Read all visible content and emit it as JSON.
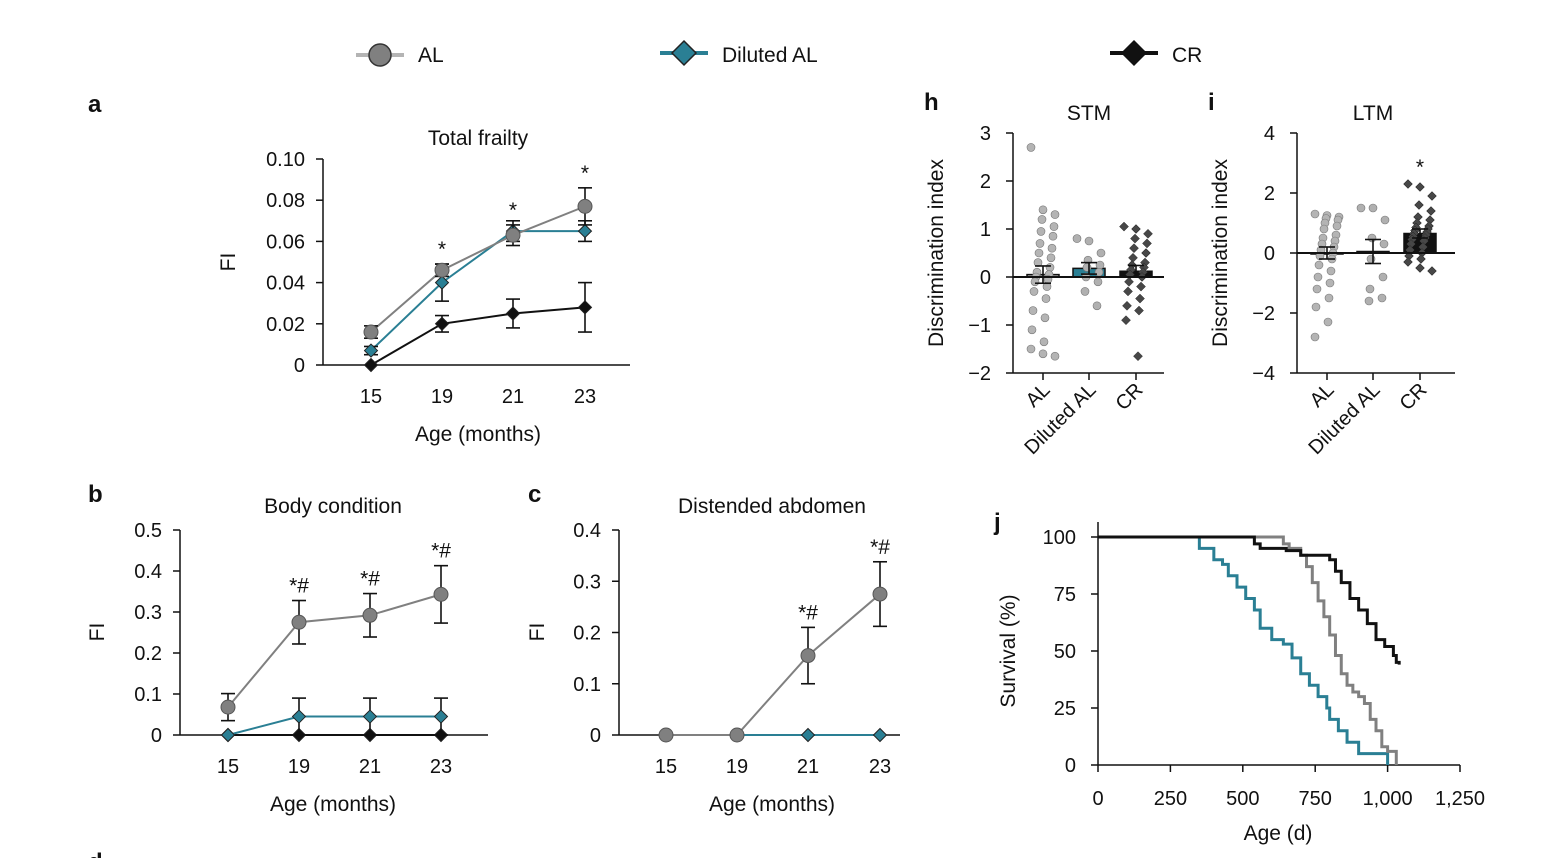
{
  "legend": [
    {
      "name": "AL",
      "color": "#808080",
      "marker": "circle"
    },
    {
      "name": "Diluted AL",
      "color": "#2a7f94",
      "marker": "diamond"
    },
    {
      "name": "CR",
      "color": "#111111",
      "marker": "diamond"
    }
  ],
  "colors": {
    "AL": "#808080",
    "DilutedAL": "#2a7f94",
    "CR": "#111111",
    "ALpoint": "#b4b4b4",
    "CRpoint": "#474747"
  },
  "panel_letters": {
    "a": "a",
    "b": "b",
    "c": "c",
    "h": "h",
    "i": "i",
    "j": "j",
    "d": "d"
  },
  "chart_data": [
    {
      "id": "a",
      "type": "line",
      "title": "Total frailty",
      "xlabel": "Age (months)",
      "ylabel": "FI",
      "categories": [
        "15",
        "19",
        "21",
        "23"
      ],
      "ylim": [
        0,
        0.1
      ],
      "yticks": [
        "0",
        "0.02",
        "0.04",
        "0.06",
        "0.08",
        "0.10"
      ],
      "series": [
        {
          "name": "AL",
          "values": [
            0.016,
            0.046,
            0.063,
            0.077
          ],
          "errors": [
            0.003,
            0.003,
            0.005,
            0.009
          ]
        },
        {
          "name": "Diluted AL",
          "values": [
            0.007,
            0.04,
            0.065,
            0.065
          ],
          "errors": [
            0.002,
            0.009,
            0.005,
            0.005
          ]
        },
        {
          "name": "CR",
          "values": [
            0.0,
            0.02,
            0.025,
            0.028
          ],
          "errors": [
            0.0,
            0.004,
            0.007,
            0.012
          ]
        }
      ],
      "annotations": [
        "",
        "*",
        "*",
        "*"
      ]
    },
    {
      "id": "b",
      "type": "line",
      "title": "Body condition",
      "xlabel": "Age (months)",
      "ylabel": "FI",
      "categories": [
        "15",
        "19",
        "21",
        "23"
      ],
      "ylim": [
        0,
        0.5
      ],
      "yticks": [
        "0",
        "0.1",
        "0.2",
        "0.3",
        "0.4",
        "0.5"
      ],
      "series": [
        {
          "name": "AL",
          "values": [
            0.068,
            0.275,
            0.292,
            0.343
          ],
          "errors": [
            0.033,
            0.053,
            0.053,
            0.07
          ]
        },
        {
          "name": "Diluted AL",
          "values": [
            0.0,
            0.045,
            0.045,
            0.045
          ],
          "errors": [
            0.0,
            0.045,
            0.045,
            0.045
          ]
        },
        {
          "name": "CR",
          "values": [
            0,
            0,
            0,
            0
          ],
          "errors": [
            0,
            0,
            0,
            0
          ]
        }
      ],
      "annotations": [
        "",
        "*#",
        "*#",
        "*#"
      ]
    },
    {
      "id": "c",
      "type": "line",
      "title": "Distended abdomen",
      "xlabel": "Age (months)",
      "ylabel": "FI",
      "categories": [
        "15",
        "19",
        "21",
        "23"
      ],
      "ylim": [
        0,
        0.4
      ],
      "yticks": [
        "0",
        "0.1",
        "0.2",
        "0.3",
        "0.4"
      ],
      "series": [
        {
          "name": "AL",
          "values": [
            0,
            0,
            0.155,
            0.275
          ],
          "errors": [
            0,
            0,
            0.055,
            0.063
          ]
        },
        {
          "name": "Diluted AL",
          "values": [
            0,
            0,
            0,
            0
          ],
          "errors": [
            0,
            0,
            0,
            0
          ]
        }
      ],
      "annotations": [
        "",
        "",
        "*#",
        "*#"
      ]
    },
    {
      "id": "h",
      "type": "bar",
      "title": "STM",
      "ylabel": "Discrimination index",
      "categories": [
        "AL",
        "Diluted AL",
        "CR"
      ],
      "ylim": [
        -2,
        3
      ],
      "yticks": [
        "−2",
        "−1",
        "0",
        "1",
        "2",
        "3"
      ],
      "values": [
        0.05,
        0.18,
        0.12
      ],
      "errors": [
        0.18,
        0.12,
        0.12
      ],
      "points": [
        [
          2.7,
          1.4,
          1.3,
          1.2,
          1.05,
          0.95,
          0.85,
          0.7,
          0.6,
          0.5,
          0.4,
          0.3,
          0.2,
          0.1,
          0.05,
          0.0,
          -0.05,
          -0.1,
          -0.2,
          -0.3,
          -0.45,
          -0.7,
          -0.85,
          -1.1,
          -1.35,
          -1.5,
          -1.6,
          -1.65
        ],
        [
          0.8,
          0.75,
          0.5,
          0.35,
          0.25,
          0.2,
          0.1,
          0.0,
          -0.1,
          -0.3,
          -0.6
        ],
        [
          1.05,
          1.0,
          0.9,
          0.8,
          0.7,
          0.6,
          0.5,
          0.4,
          0.3,
          0.25,
          0.2,
          0.15,
          0.1,
          0.05,
          0.0,
          -0.1,
          -0.2,
          -0.3,
          -0.45,
          -0.6,
          -0.7,
          -0.9,
          -1.65
        ]
      ],
      "annotation": ""
    },
    {
      "id": "i",
      "type": "bar",
      "title": "LTM",
      "ylabel": "Discrimination index",
      "categories": [
        "AL",
        "Diluted AL",
        "CR"
      ],
      "ylim": [
        -4,
        4
      ],
      "yticks": [
        "−4",
        "−2",
        "0",
        "2",
        "4"
      ],
      "values": [
        0.0,
        0.05,
        0.65
      ],
      "errors": [
        0.2,
        0.4,
        0.15
      ],
      "points": [
        [
          1.3,
          1.25,
          1.2,
          1.15,
          1.1,
          1.0,
          0.9,
          0.8,
          0.6,
          0.5,
          0.4,
          0.3,
          0.2,
          0.1,
          0.0,
          -0.1,
          -0.2,
          -0.4,
          -0.6,
          -0.8,
          -1.0,
          -1.2,
          -1.5,
          -1.8,
          -2.3,
          -2.8
        ],
        [
          1.5,
          1.5,
          1.1,
          0.5,
          0.3,
          -0.2,
          -0.8,
          -1.2,
          -1.5,
          -1.6
        ],
        [
          2.3,
          2.2,
          1.9,
          1.6,
          1.4,
          1.2,
          1.1,
          1.0,
          0.9,
          0.85,
          0.8,
          0.75,
          0.7,
          0.65,
          0.6,
          0.55,
          0.5,
          0.45,
          0.4,
          0.3,
          0.2,
          0.1,
          0.0,
          -0.1,
          -0.2,
          -0.3,
          -0.5,
          -0.6
        ]
      ],
      "annotation": "*"
    },
    {
      "id": "j",
      "type": "line",
      "subtype": "survival",
      "xlabel": "Age (d)",
      "ylabel": "Survival (%)",
      "xlim": [
        0,
        1250
      ],
      "ylim": [
        0,
        100
      ],
      "xticks": [
        "0",
        "250",
        "500",
        "750",
        "1,000",
        "1,250"
      ],
      "yticks": [
        "0",
        "25",
        "50",
        "75",
        "100"
      ],
      "series": [
        {
          "name": "AL",
          "x": [
            0,
            640,
            660,
            700,
            720,
            740,
            760,
            780,
            800,
            820,
            840,
            860,
            880,
            900,
            920,
            940,
            960,
            980,
            1000,
            1030
          ],
          "y": [
            100,
            97,
            95,
            92,
            87,
            80,
            72,
            65,
            57,
            48,
            40,
            35,
            32,
            30,
            27,
            20,
            15,
            8,
            6,
            0
          ]
        },
        {
          "name": "Diluted AL",
          "x": [
            0,
            300,
            350,
            400,
            430,
            450,
            480,
            510,
            540,
            560,
            600,
            640,
            670,
            700,
            730,
            760,
            790,
            800,
            830,
            860,
            900,
            970,
            1000
          ],
          "y": [
            100,
            100,
            95,
            90,
            88,
            83,
            78,
            73,
            68,
            60,
            55,
            53,
            47,
            40,
            35,
            30,
            25,
            20,
            15,
            10,
            5,
            5,
            0
          ]
        },
        {
          "name": "CR",
          "x": [
            0,
            500,
            540,
            560,
            600,
            650,
            700,
            750,
            800,
            820,
            840,
            870,
            900,
            930,
            960,
            990,
            1020,
            1030,
            1040
          ],
          "y": [
            100,
            100,
            97,
            95,
            95,
            94,
            92,
            92,
            90,
            85,
            80,
            73,
            68,
            62,
            55,
            52,
            48,
            45,
            44
          ]
        }
      ]
    }
  ]
}
